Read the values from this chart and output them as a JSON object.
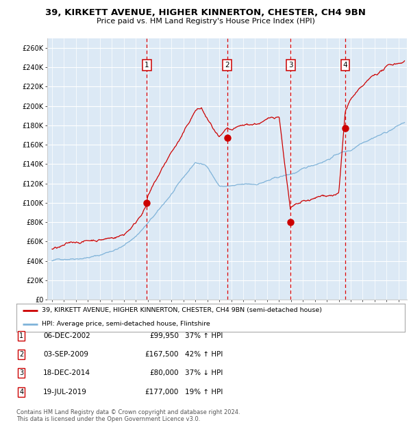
{
  "title1": "39, KIRKETT AVENUE, HIGHER KINNERTON, CHESTER, CH4 9BN",
  "title2": "Price paid vs. HM Land Registry's House Price Index (HPI)",
  "legend_line1": "39, KIRKETT AVENUE, HIGHER KINNERTON, CHESTER, CH4 9BN (semi-detached house)",
  "legend_line2": "HPI: Average price, semi-detached house, Flintshire",
  "transactions": [
    {
      "num": 1,
      "date": "06-DEC-2002",
      "price": 99950,
      "pct": "37%",
      "dir": "↑",
      "year_x": 2002.92
    },
    {
      "num": 2,
      "date": "03-SEP-2009",
      "price": 167500,
      "pct": "42%",
      "dir": "↑",
      "year_x": 2009.67
    },
    {
      "num": 3,
      "date": "18-DEC-2014",
      "price": 80000,
      "pct": "37%",
      "dir": "↓",
      "year_x": 2014.96
    },
    {
      "num": 4,
      "date": "19-JUL-2019",
      "price": 177000,
      "pct": "19%",
      "dir": "↑",
      "year_x": 2019.54
    }
  ],
  "footnote1": "Contains HM Land Registry data © Crown copyright and database right 2024.",
  "footnote2": "This data is licensed under the Open Government Licence v3.0.",
  "ylim": [
    0,
    270000
  ],
  "xlim_start": 1994.6,
  "xlim_end": 2024.7,
  "bg_color": "#dce9f5",
  "plot_bg": "#dce9f5",
  "grid_color": "#ffffff",
  "red_line_color": "#cc0000",
  "blue_line_color": "#7fb3d9",
  "vline_color": "#dd0000",
  "dot_color": "#cc0000",
  "label_box_color": "#cc0000",
  "label_box_fill": "#ffffff",
  "fig_bg": "#ffffff"
}
